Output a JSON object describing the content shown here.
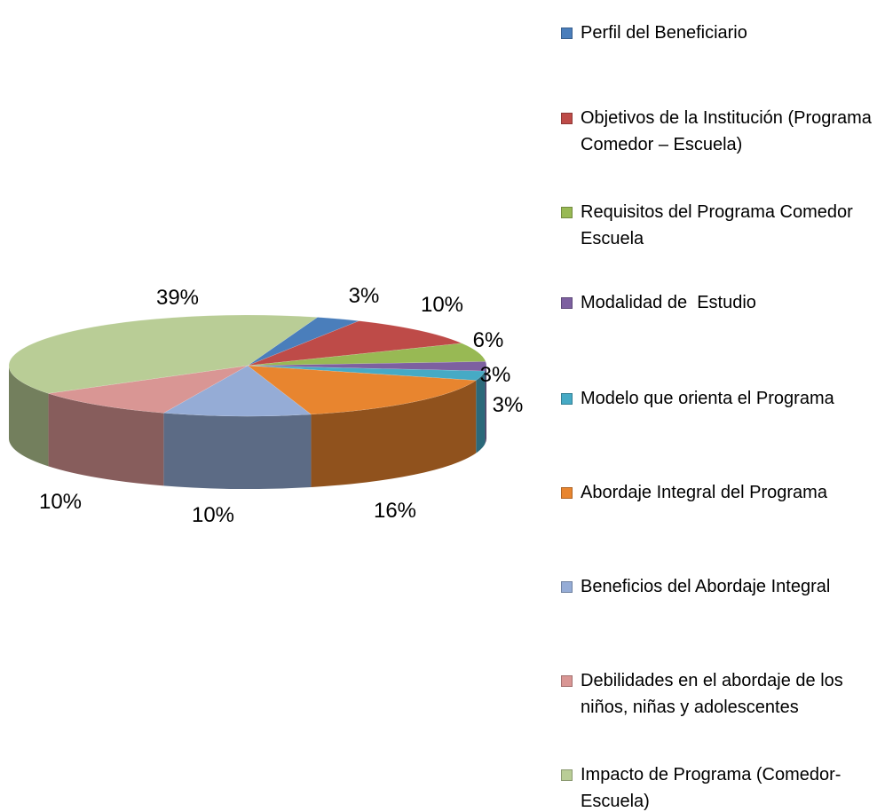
{
  "chart_data": {
    "type": "pie",
    "categories": [
      "Perfil del Beneficiario",
      "Objetivos de la Institución (Programa Comedor – Escuela)",
      "Requisitos del Programa Comedor Escuela",
      "Modalidad de  Estudio",
      "Modelo que orienta el Programa",
      "Abordaje Integral del Programa",
      "Beneficios del Abordaje Integral",
      "Debilidades en el abordaje de los niños, niñas y adolescentes",
      "Impacto de Programa (Comedor- Escuela)"
    ],
    "values": [
      3,
      10,
      6,
      3,
      3,
      16,
      10,
      10,
      39
    ],
    "value_labels": [
      "3%",
      "10%",
      "6%",
      "3%",
      "3%",
      "16%",
      "10%",
      "10%",
      "39%"
    ],
    "colors": [
      "#4a7ebb",
      "#be4b48",
      "#98b954",
      "#7d60a0",
      "#46aac5",
      "#e8852f",
      "#95acd6",
      "#d99694",
      "#b9cd96"
    ],
    "legend": "right"
  }
}
